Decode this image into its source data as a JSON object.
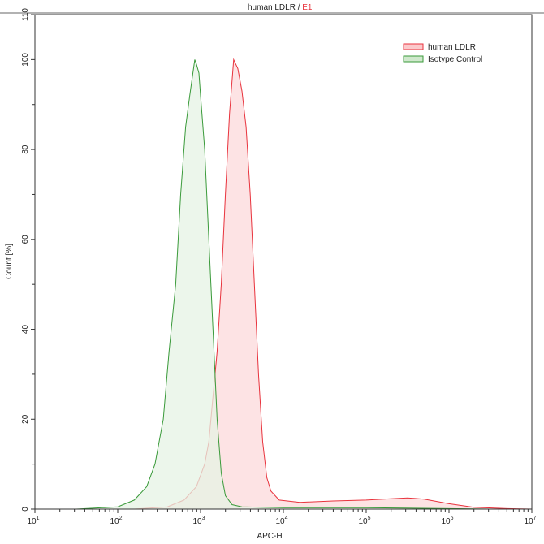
{
  "chart_data": {
    "type": "area",
    "title_main": "human LDLR / ",
    "title_sample": "E1",
    "xlabel": "APC-H",
    "ylabel": "Count [%]",
    "xscale": "log",
    "xlim_log10": [
      1,
      7
    ],
    "ylim": [
      0,
      110
    ],
    "xticks": [
      {
        "exp": "1"
      },
      {
        "exp": "2"
      },
      {
        "exp": "3"
      },
      {
        "exp": "4"
      },
      {
        "exp": "5"
      },
      {
        "exp": "6"
      },
      {
        "exp": "7"
      }
    ],
    "yticks": [
      "0",
      "20",
      "40",
      "60",
      "80",
      "100",
      "110"
    ],
    "ytick_values": [
      0,
      20,
      40,
      60,
      80,
      100,
      110
    ],
    "legend_position": "top-right",
    "series": [
      {
        "name": "human LDLR",
        "color": "#e8323c",
        "fill": "#fde3e4",
        "log10x": [
          2.2,
          2.6,
          2.8,
          2.95,
          3.05,
          3.1,
          3.15,
          3.2,
          3.25,
          3.3,
          3.35,
          3.4,
          3.45,
          3.5,
          3.55,
          3.6,
          3.65,
          3.7,
          3.75,
          3.8,
          3.85,
          3.95,
          4.2,
          4.6,
          5.0,
          5.3,
          5.5,
          5.7,
          6.0,
          6.3,
          6.7,
          7.0
        ],
        "values": [
          0,
          0.5,
          2,
          5,
          10,
          15,
          25,
          35,
          50,
          70,
          88,
          100,
          98,
          93,
          85,
          70,
          50,
          30,
          15,
          7,
          4,
          2,
          1.5,
          1.8,
          2,
          2.3,
          2.5,
          2.2,
          1.2,
          0.4,
          0.1,
          0
        ]
      },
      {
        "name": "Isotype Control",
        "color": "#3a9a3a",
        "fill": "#e6f3e4",
        "log10x": [
          1.5,
          2.0,
          2.2,
          2.35,
          2.45,
          2.55,
          2.62,
          2.7,
          2.76,
          2.82,
          2.87,
          2.9,
          2.93,
          2.95,
          2.98,
          3.0,
          3.05,
          3.1,
          3.15,
          3.2,
          3.25,
          3.3,
          3.38,
          3.5,
          4.0,
          5.0,
          6.0,
          6.5
        ],
        "values": [
          0,
          0.5,
          2,
          5,
          10,
          20,
          35,
          50,
          70,
          85,
          92,
          96,
          100,
          99,
          97,
          92,
          80,
          60,
          40,
          20,
          8,
          3,
          1,
          0.5,
          0.3,
          0.3,
          0.1,
          0
        ]
      }
    ]
  }
}
